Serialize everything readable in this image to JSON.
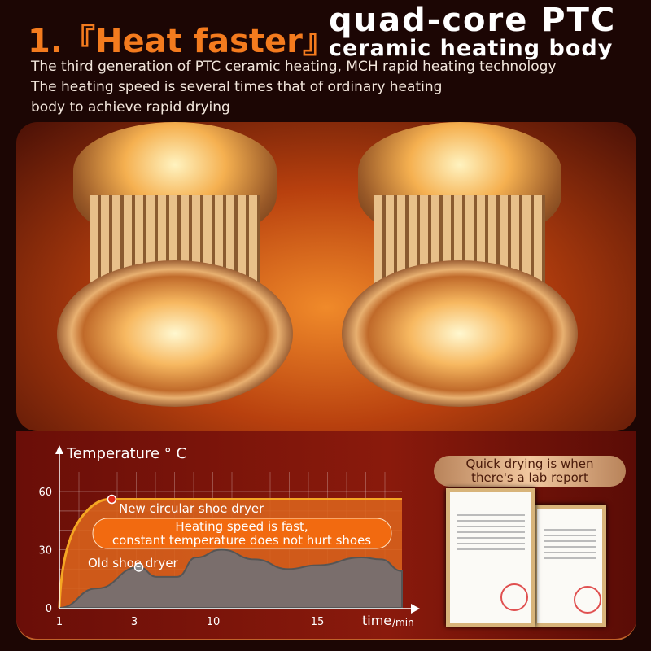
{
  "header": {
    "title_prefix": "1.『Heat faster』",
    "title_main": "quad-core PTC",
    "title_sub": "ceramic heating body",
    "description": [
      "The third generation of PTC ceramic heating, MCH rapid heating technology",
      "The heating speed is several times that of ordinary heating",
      "body to achieve rapid drying"
    ]
  },
  "colors": {
    "accent": "#f47b1e",
    "new_line": "#f5a623",
    "new_fill": "#d8621c",
    "old_fill": "#7a6e6c",
    "background": "#1c0604"
  },
  "lab_badge": {
    "line1": "Quick drying is when",
    "line2": "there's a lab report"
  },
  "chart_data": {
    "type": "area",
    "ylabel": "Temperature ° C",
    "xlabel": "time",
    "xunit": "/min",
    "yticks": [
      0,
      30,
      60
    ],
    "xticks": [
      1,
      3,
      10,
      15
    ],
    "ylim": [
      0,
      60
    ],
    "grid": true,
    "series": [
      {
        "name": "New circular shoe dryer",
        "points": [
          [
            1,
            0
          ],
          [
            1.2,
            25
          ],
          [
            1.6,
            45
          ],
          [
            2.4,
            56
          ],
          [
            19,
            56
          ]
        ],
        "marker": [
          2.4,
          56
        ]
      },
      {
        "name": "Old shoe dryer",
        "points": [
          [
            1,
            0
          ],
          [
            2,
            10
          ],
          [
            3.4,
            21
          ],
          [
            5,
            16
          ],
          [
            6.8,
            16
          ],
          [
            8.5,
            26
          ],
          [
            10.4,
            30
          ],
          [
            12,
            25
          ],
          [
            13.6,
            20
          ],
          [
            15,
            22
          ],
          [
            17.1,
            26
          ],
          [
            18,
            25
          ],
          [
            19,
            19
          ]
        ],
        "marker": [
          3.4,
          21
        ]
      }
    ],
    "callout": {
      "line1": "Heating speed is fast,",
      "line2": "constant temperature does not hurt shoes"
    }
  }
}
